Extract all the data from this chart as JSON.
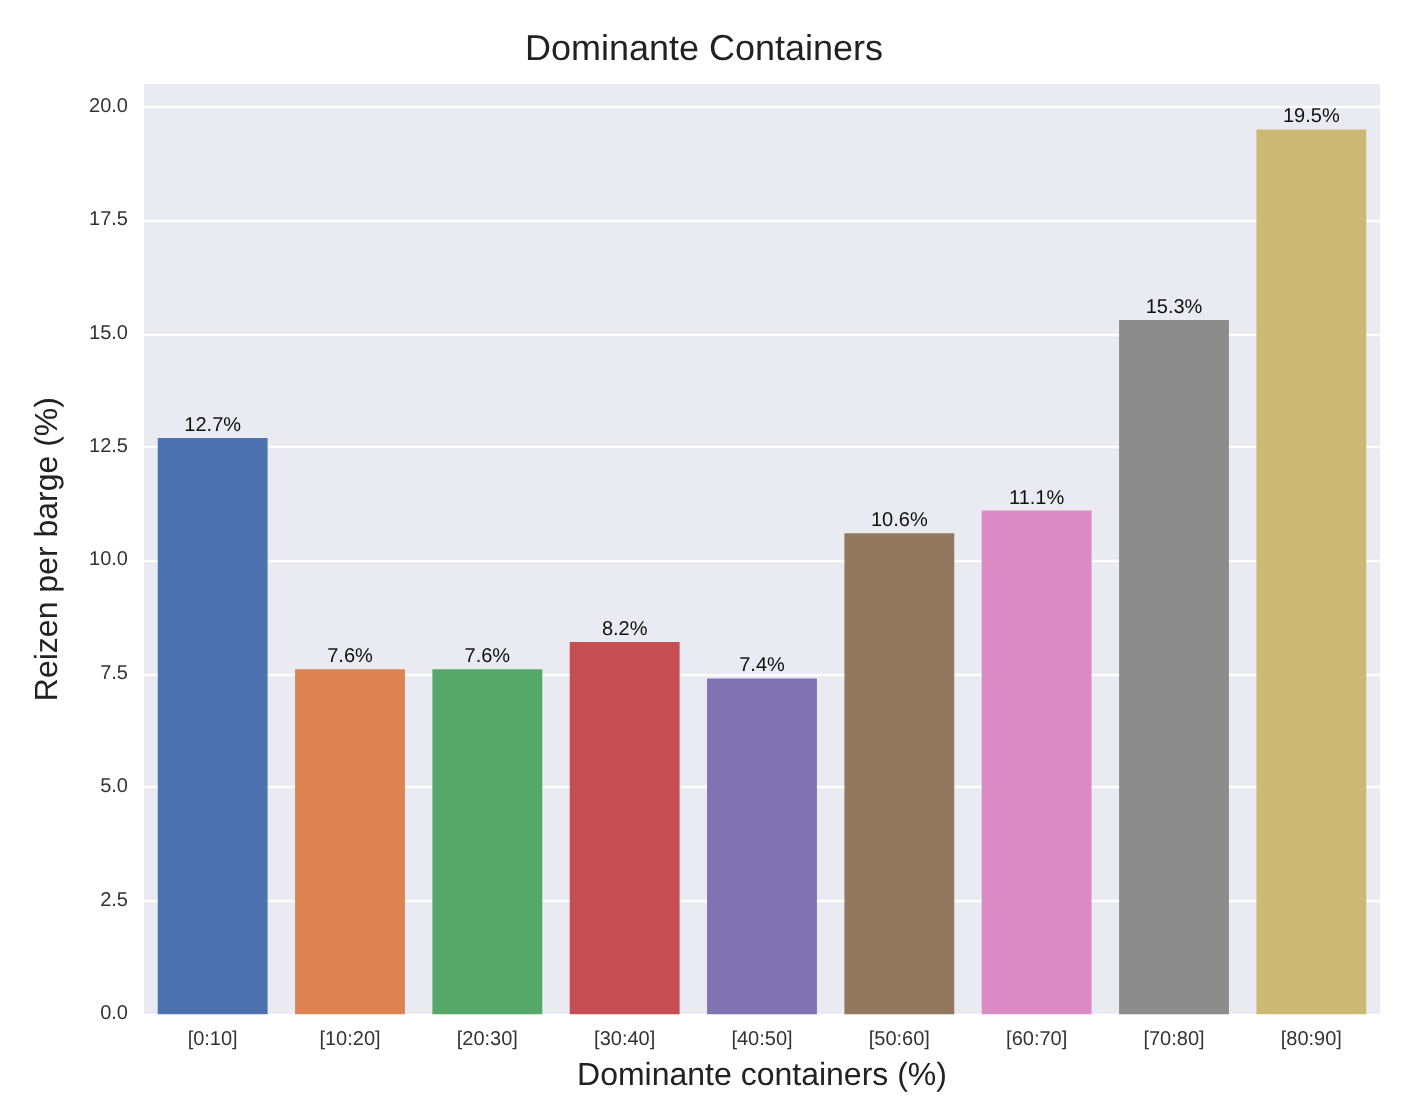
{
  "chart_data": {
    "type": "bar",
    "title": "Dominante Containers",
    "xlabel": "Dominante containers (%)",
    "ylabel": "Reizen per barge (%)",
    "categories": [
      "[0:10]",
      "[10:20]",
      "[20:30]",
      "[30:40]",
      "[40:50]",
      "[50:60]",
      "[60:70]",
      "[70:80]",
      "[80:90]"
    ],
    "values": [
      12.7,
      7.6,
      7.6,
      8.2,
      7.4,
      10.6,
      11.1,
      15.3,
      19.5
    ],
    "colors": [
      "#4c72b0",
      "#dd8452",
      "#55a868",
      "#c44e52",
      "#8172b3",
      "#937860",
      "#da8bc3",
      "#8c8c8c",
      "#ccb974"
    ],
    "value_labels": [
      "12.7%",
      "7.6%",
      "7.6%",
      "8.2%",
      "7.4%",
      "10.6%",
      "11.1%",
      "15.3%",
      "19.5%"
    ],
    "ylim": [
      0,
      20.5
    ],
    "yticks": [
      {
        "value": 0,
        "label": "0.0"
      },
      {
        "value": 2.5,
        "label": "2.5"
      },
      {
        "value": 5,
        "label": "5.0"
      },
      {
        "value": 7.5,
        "label": "7.5"
      },
      {
        "value": 10,
        "label": "10.0"
      },
      {
        "value": 12.5,
        "label": "12.5"
      },
      {
        "value": 15,
        "label": "15.0"
      },
      {
        "value": 17.5,
        "label": "17.5"
      },
      {
        "value": 20,
        "label": "20.0"
      }
    ],
    "grid": "y"
  }
}
